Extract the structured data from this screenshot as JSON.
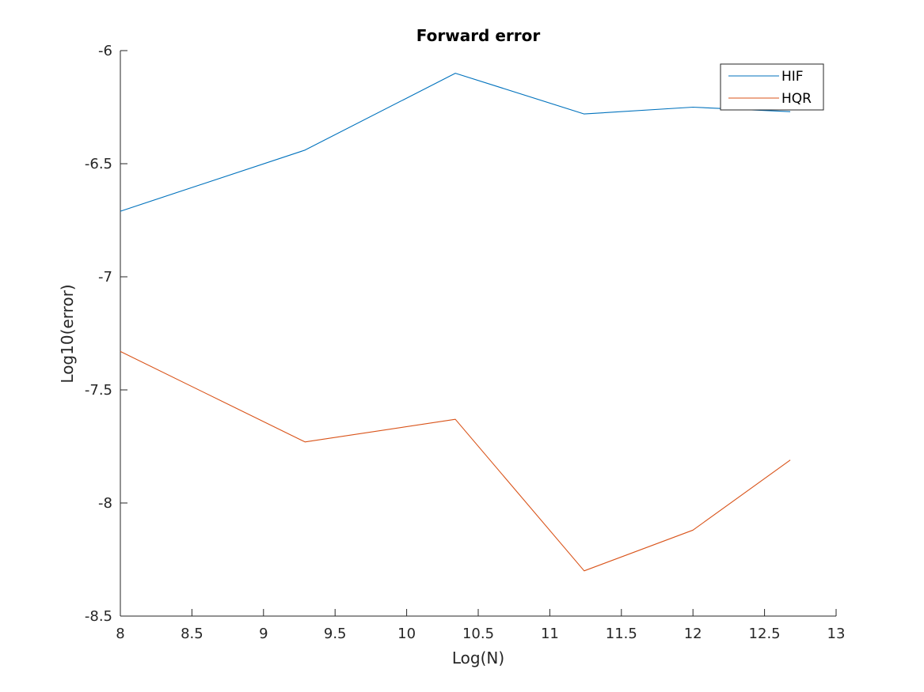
{
  "chart_data": {
    "type": "line",
    "title": "Forward error",
    "xlabel": "Log(N)",
    "ylabel": "Log10(error)",
    "xlim": [
      8,
      13
    ],
    "ylim": [
      -8.5,
      -6
    ],
    "xticks": [
      8,
      8.5,
      9,
      9.5,
      10,
      10.5,
      11,
      11.5,
      12,
      12.5,
      13
    ],
    "xtick_labels": [
      "8",
      "8.5",
      "9",
      "9.5",
      "10",
      "10.5",
      "11",
      "11.5",
      "12",
      "12.5",
      "13"
    ],
    "yticks": [
      -8.5,
      -8,
      -7.5,
      -7,
      -6.5,
      -6
    ],
    "ytick_labels": [
      "-8.5",
      "-8",
      "-7.5",
      "-7",
      "-6.5",
      "-6"
    ],
    "grid": false,
    "legend_position": "top-right",
    "series": [
      {
        "name": "HIF",
        "color": "#0072BD",
        "x": [
          8.0,
          9.29,
          10.34,
          11.24,
          12.0,
          12.68
        ],
        "y": [
          -6.71,
          -6.44,
          -6.1,
          -6.28,
          -6.25,
          -6.27
        ]
      },
      {
        "name": "HQR",
        "color": "#D95319",
        "x": [
          8.0,
          9.29,
          10.34,
          11.24,
          12.0,
          12.68
        ],
        "y": [
          -7.33,
          -7.73,
          -7.63,
          -8.3,
          -8.12,
          -7.81
        ]
      }
    ]
  }
}
